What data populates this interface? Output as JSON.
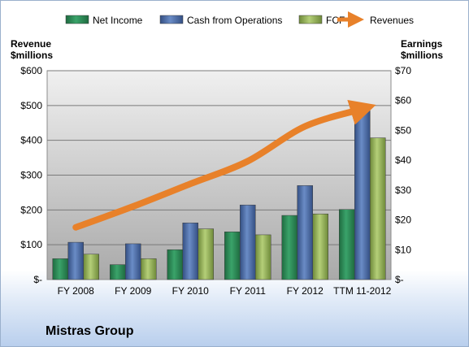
{
  "company": "Mistras Group",
  "colors": {
    "net_income": "#2e8b57",
    "cash_ops": "#4f6fa8",
    "fcf": "#9ab65a",
    "revenues": "#e8812a"
  },
  "chart_data": {
    "type": "bar",
    "left_axis_title": "Revenue\n$millions",
    "right_axis_title": "Earnings\n$millions",
    "left_ylim": [
      0,
      600
    ],
    "right_ylim": [
      0,
      70
    ],
    "left_ticks": [
      "$-",
      "$100",
      "$200",
      "$300",
      "$400",
      "$500",
      "$600"
    ],
    "right_ticks": [
      "$-",
      "$10",
      "$20",
      "$30",
      "$40",
      "$50",
      "$60",
      "$70"
    ],
    "grid": true,
    "legend_position": "top",
    "categories": [
      "FY 2008",
      "FY 2009",
      "FY 2010",
      "FY 2011",
      "FY 2012",
      "TTM 11-2012"
    ],
    "series": [
      {
        "name": "Net Income",
        "axis": "right",
        "type": "bar",
        "values": [
          7.0,
          5.0,
          10.0,
          16.0,
          21.5,
          23.5
        ]
      },
      {
        "name": "Cash from Operations",
        "axis": "right",
        "type": "bar",
        "values": [
          12.5,
          12.0,
          19.0,
          25.0,
          31.5,
          58.5
        ]
      },
      {
        "name": "FCF",
        "axis": "right",
        "type": "bar",
        "values": [
          8.5,
          7.0,
          17.0,
          15.0,
          22.0,
          47.5
        ]
      },
      {
        "name": "Revenues",
        "axis": "left",
        "type": "line",
        "values": [
          150,
          210,
          275,
          340,
          440,
          490
        ]
      }
    ]
  }
}
